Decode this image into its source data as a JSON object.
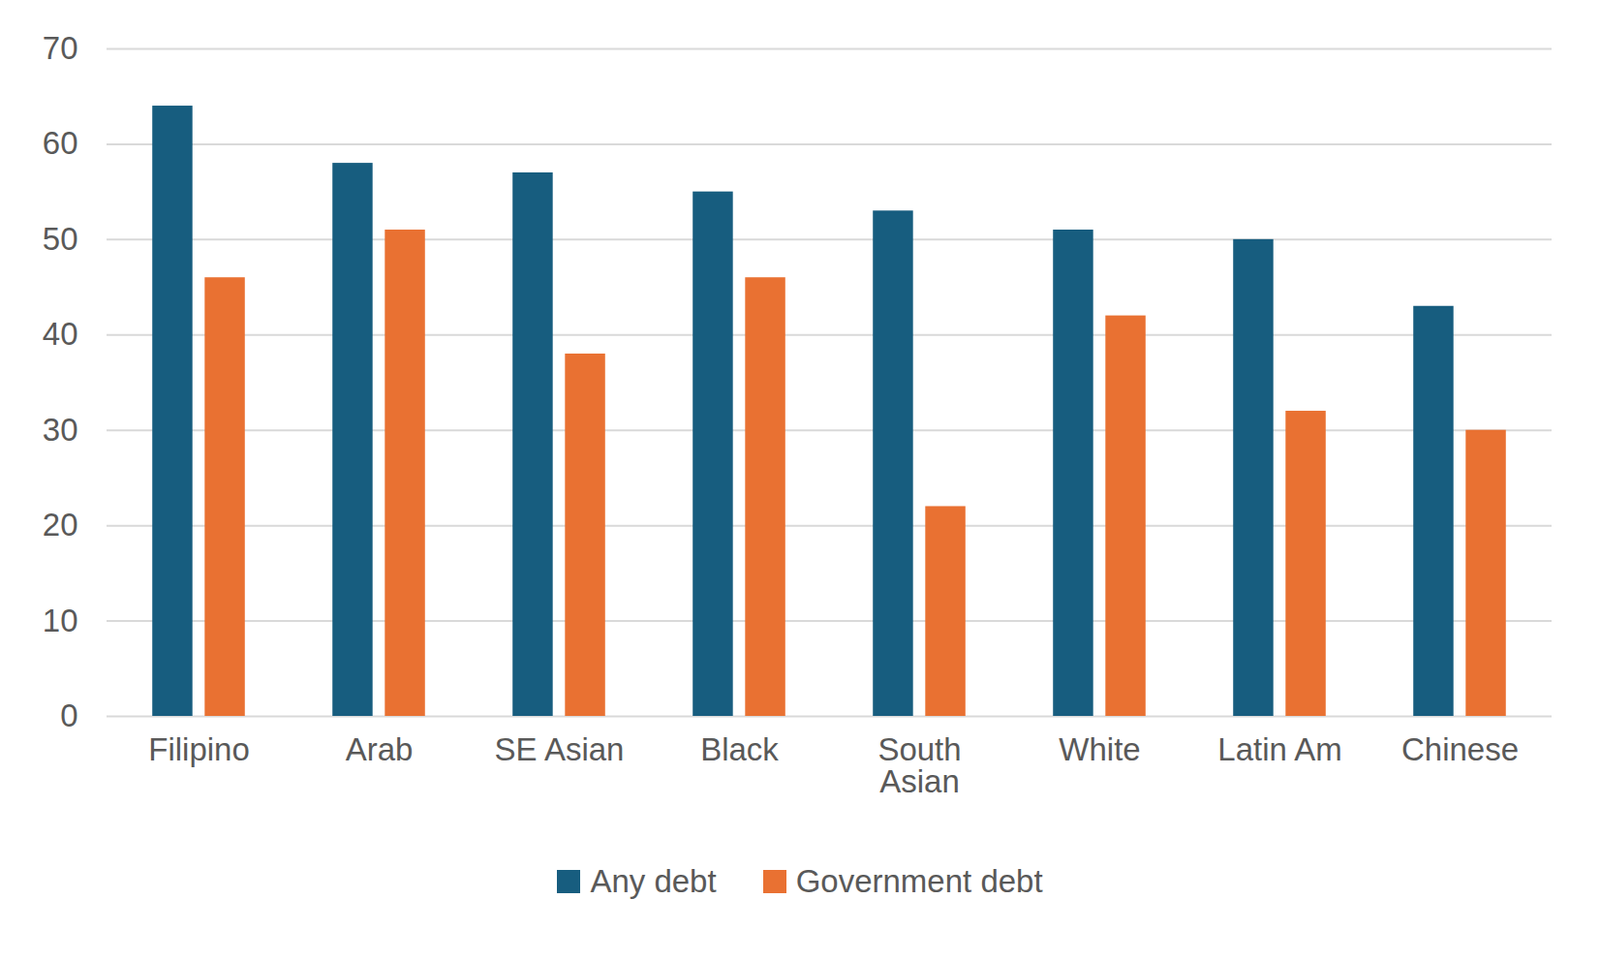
{
  "chart_data": {
    "type": "bar",
    "categories": [
      "Filipino",
      "Arab",
      "SE Asian",
      "Black",
      "South Asian",
      "White",
      "Latin Am",
      "Chinese"
    ],
    "series": [
      {
        "name": "Any debt",
        "color": "#175d7f",
        "values": [
          64,
          58,
          57,
          55,
          53,
          51,
          50,
          43
        ]
      },
      {
        "name": "Government debt",
        "color": "#e97132",
        "values": [
          46,
          51,
          38,
          46,
          22,
          42,
          32,
          30
        ]
      }
    ],
    "ylim": [
      0,
      70
    ],
    "yticks": [
      0,
      10,
      20,
      30,
      40,
      50,
      60,
      70
    ],
    "grid": true,
    "legend": "bottom"
  }
}
